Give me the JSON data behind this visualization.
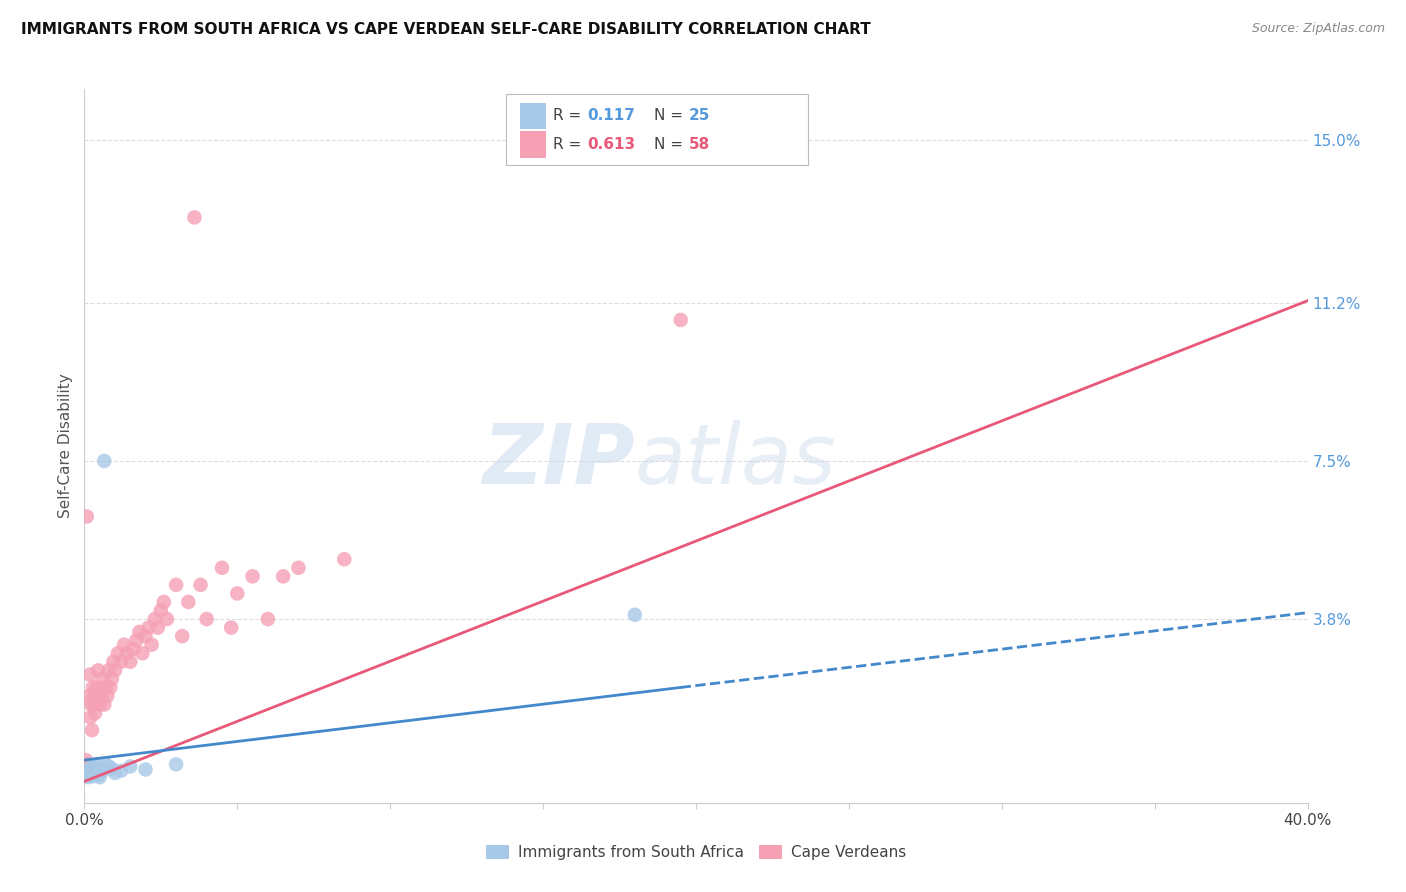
{
  "title": "IMMIGRANTS FROM SOUTH AFRICA VS CAPE VERDEAN SELF-CARE DISABILITY CORRELATION CHART",
  "source": "Source: ZipAtlas.com",
  "ylabel": "Self-Care Disability",
  "xlim": [
    0.0,
    0.4
  ],
  "ylim": [
    -0.005,
    0.162
  ],
  "xtick_vals": [
    0.0,
    0.05,
    0.1,
    0.15,
    0.2,
    0.25,
    0.3,
    0.35,
    0.4
  ],
  "xticklabels": [
    "0.0%",
    "",
    "",
    "",
    "",
    "",
    "",
    "",
    "40.0%"
  ],
  "right_ytick_vals": [
    0.0,
    0.038,
    0.075,
    0.112,
    0.15
  ],
  "right_yticklabels": [
    "",
    "3.8%",
    "7.5%",
    "11.2%",
    "15.0%"
  ],
  "color_blue": "#a8c8e8",
  "color_pink": "#f5a0b5",
  "color_blue_line": "#4488cc",
  "color_pink_line": "#e85878",
  "series1_label": "Immigrants from South Africa",
  "series2_label": "Cape Verdeans",
  "legend_r1_val": "0.117",
  "legend_n1_val": "25",
  "legend_r2_val": "0.613",
  "legend_n2_val": "58",
  "sa_x": [
    0.0008,
    0.001,
    0.0012,
    0.0015,
    0.0018,
    0.002,
    0.0022,
    0.0025,
    0.0028,
    0.003,
    0.0035,
    0.004,
    0.0045,
    0.005,
    0.006,
    0.0065,
    0.007,
    0.008,
    0.009,
    0.01,
    0.012,
    0.015,
    0.02,
    0.03,
    0.18
  ],
  "sa_y": [
    0.002,
    0.0015,
    0.001,
    0.0025,
    0.003,
    0.0018,
    0.0022,
    0.0012,
    0.0035,
    0.0028,
    0.002,
    0.004,
    0.0015,
    0.001,
    0.0025,
    0.075,
    0.004,
    0.0035,
    0.003,
    0.002,
    0.0025,
    0.0035,
    0.0028,
    0.004,
    0.039
  ],
  "cv_x": [
    0.0005,
    0.0008,
    0.001,
    0.0012,
    0.0015,
    0.0018,
    0.002,
    0.0022,
    0.0025,
    0.0028,
    0.003,
    0.0032,
    0.0035,
    0.004,
    0.0045,
    0.005,
    0.0055,
    0.006,
    0.0065,
    0.007,
    0.0075,
    0.008,
    0.0085,
    0.009,
    0.0095,
    0.01,
    0.011,
    0.012,
    0.013,
    0.014,
    0.015,
    0.016,
    0.017,
    0.018,
    0.019,
    0.02,
    0.021,
    0.022,
    0.023,
    0.024,
    0.025,
    0.026,
    0.027,
    0.03,
    0.032,
    0.034,
    0.036,
    0.038,
    0.04,
    0.045,
    0.048,
    0.05,
    0.055,
    0.06,
    0.065,
    0.07,
    0.085,
    0.195
  ],
  "cv_y": [
    0.005,
    0.062,
    0.004,
    0.003,
    0.02,
    0.025,
    0.015,
    0.018,
    0.012,
    0.022,
    0.018,
    0.02,
    0.016,
    0.022,
    0.026,
    0.018,
    0.02,
    0.024,
    0.018,
    0.022,
    0.02,
    0.026,
    0.022,
    0.024,
    0.028,
    0.026,
    0.03,
    0.028,
    0.032,
    0.03,
    0.028,
    0.031,
    0.033,
    0.035,
    0.03,
    0.034,
    0.036,
    0.032,
    0.038,
    0.036,
    0.04,
    0.042,
    0.038,
    0.046,
    0.034,
    0.042,
    0.132,
    0.046,
    0.038,
    0.05,
    0.036,
    0.044,
    0.048,
    0.038,
    0.048,
    0.05,
    0.052,
    0.108
  ],
  "sa_line_x0": 0.0,
  "sa_line_x_solid_end": 0.195,
  "sa_line_x1": 0.4,
  "sa_line_y0": 0.005,
  "sa_line_y_solid_end": 0.022,
  "sa_line_y1": 0.0395,
  "cv_line_x0": 0.0,
  "cv_line_x1": 0.4,
  "cv_line_y0": 0.0,
  "cv_line_y1": 0.1125
}
